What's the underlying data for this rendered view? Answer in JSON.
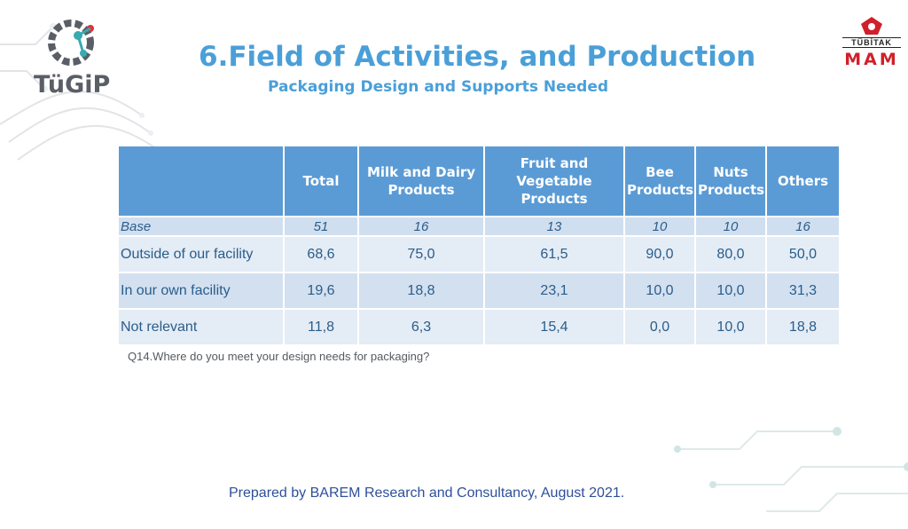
{
  "header": {
    "title": "6.Field of Activities, and Production",
    "subtitle": "Packaging Design and Supports Needed"
  },
  "logos": {
    "left": {
      "text": "TüGiP",
      "icon": "gear-icon"
    },
    "right": {
      "top_text": "TÜBİTAK",
      "main_text": "MAM"
    }
  },
  "table": {
    "headers": [
      "",
      "Total",
      "Milk and Dairy Products",
      "Fruit and Vegetable Products",
      "Bee Products",
      "Nuts Products",
      "Others"
    ],
    "base": {
      "label": "Base",
      "values": [
        "51",
        "16",
        "13",
        "10",
        "10",
        "16"
      ]
    },
    "rows": [
      {
        "label": "Outside of our facility",
        "values": [
          "68,6",
          "75,0",
          "61,5",
          "90,0",
          "80,0",
          "50,0"
        ]
      },
      {
        "label": "In our own facility",
        "values": [
          "19,6",
          "18,8",
          "23,1",
          "10,0",
          "10,0",
          "31,3"
        ]
      },
      {
        "label": "Not relevant",
        "values": [
          "11,8",
          "6,3",
          "15,4",
          "0,0",
          "10,0",
          "18,8"
        ]
      }
    ]
  },
  "question_note": "Q14.Where do you meet your design needs for packaging?",
  "footer": "Prepared by BAREM Research and Consultancy, August 2021.",
  "colors": {
    "accent": "#4a9fd8",
    "header_bg": "#5b9bd5",
    "row_light": "#e4ecf6",
    "row_dark": "#d3e0f0",
    "mam_red": "#d0202a"
  }
}
